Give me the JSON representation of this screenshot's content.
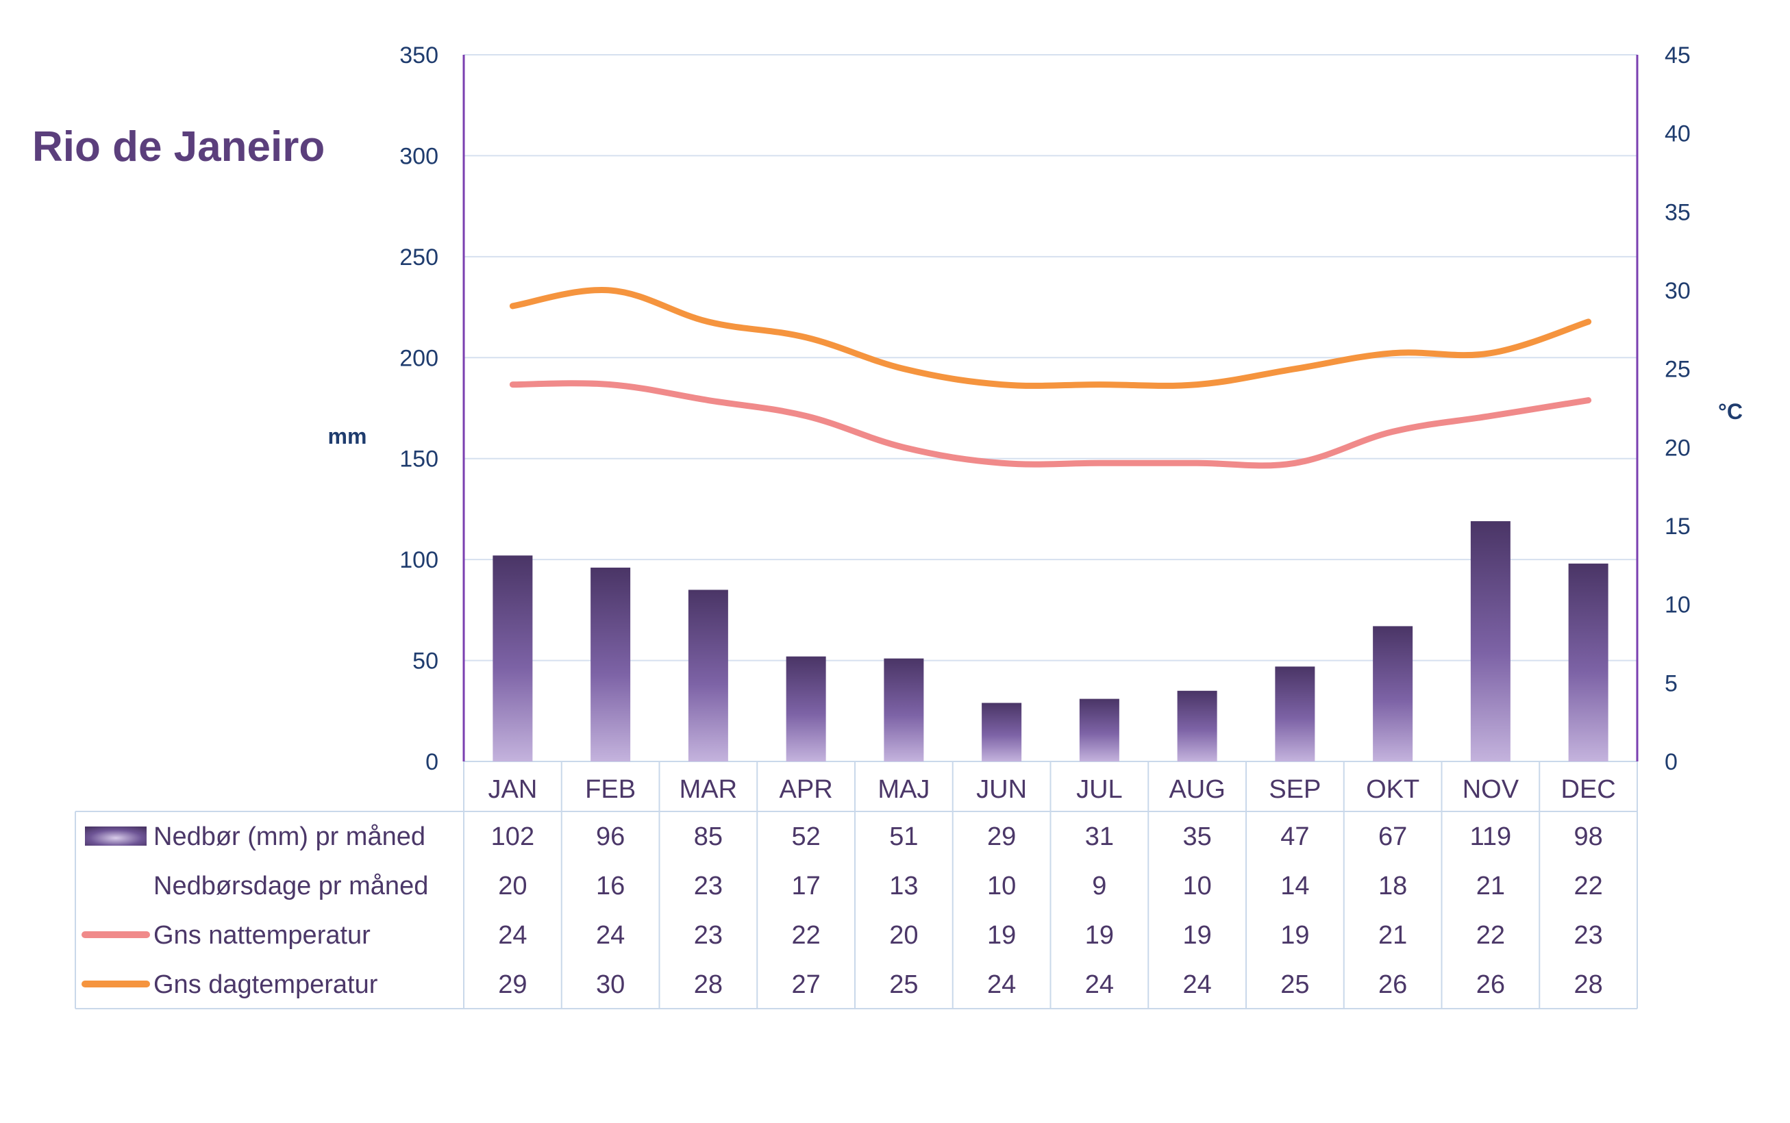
{
  "chart_data": {
    "type": "bar",
    "title": "Rio de Janeiro",
    "ylabel_left": "mm",
    "ylabel_right": "°C",
    "ylim_left": [
      0,
      350
    ],
    "ylim_right": [
      0,
      45
    ],
    "yticks_left": [
      "0",
      "50",
      "100",
      "150",
      "200",
      "250",
      "300",
      "350"
    ],
    "yticks_right": [
      "0",
      "5",
      "10",
      "15",
      "20",
      "25",
      "30",
      "35",
      "40",
      "45"
    ],
    "grid": true,
    "legend": "data-table-below",
    "categories": [
      "JAN",
      "FEB",
      "MAR",
      "APR",
      "MAJ",
      "JUN",
      "JUL",
      "AUG",
      "SEP",
      "OKT",
      "NOV",
      "DEC"
    ],
    "series": [
      {
        "name": "Nedbør (mm) pr måned",
        "type": "bar",
        "axis": "left",
        "color": "#5b3f7c",
        "values": [
          102,
          96,
          85,
          52,
          51,
          29,
          31,
          35,
          47,
          67,
          119,
          98
        ]
      },
      {
        "name": "Nedbørsdage pr måned",
        "type": "table-only",
        "values": [
          20,
          16,
          23,
          17,
          13,
          10,
          9,
          10,
          14,
          18,
          21,
          22
        ]
      },
      {
        "name": "Gns nattemperatur",
        "type": "line",
        "axis": "right",
        "color": "#f08a8a",
        "values": [
          24,
          24,
          23,
          22,
          20,
          19,
          19,
          19,
          19,
          21,
          22,
          23
        ]
      },
      {
        "name": "Gns dagtemperatur",
        "type": "line",
        "axis": "right",
        "color": "#f5943e",
        "values": [
          29,
          30,
          28,
          27,
          25,
          24,
          24,
          24,
          25,
          26,
          26,
          28
        ]
      }
    ]
  },
  "colors": {
    "axis": "#7a3fb0",
    "grid": "#d6e0ef",
    "table_border": "#c9d8ea",
    "bar_dark": "#4a3566",
    "bar_mid": "#7d63a6",
    "bar_light": "#c4b3dd"
  }
}
